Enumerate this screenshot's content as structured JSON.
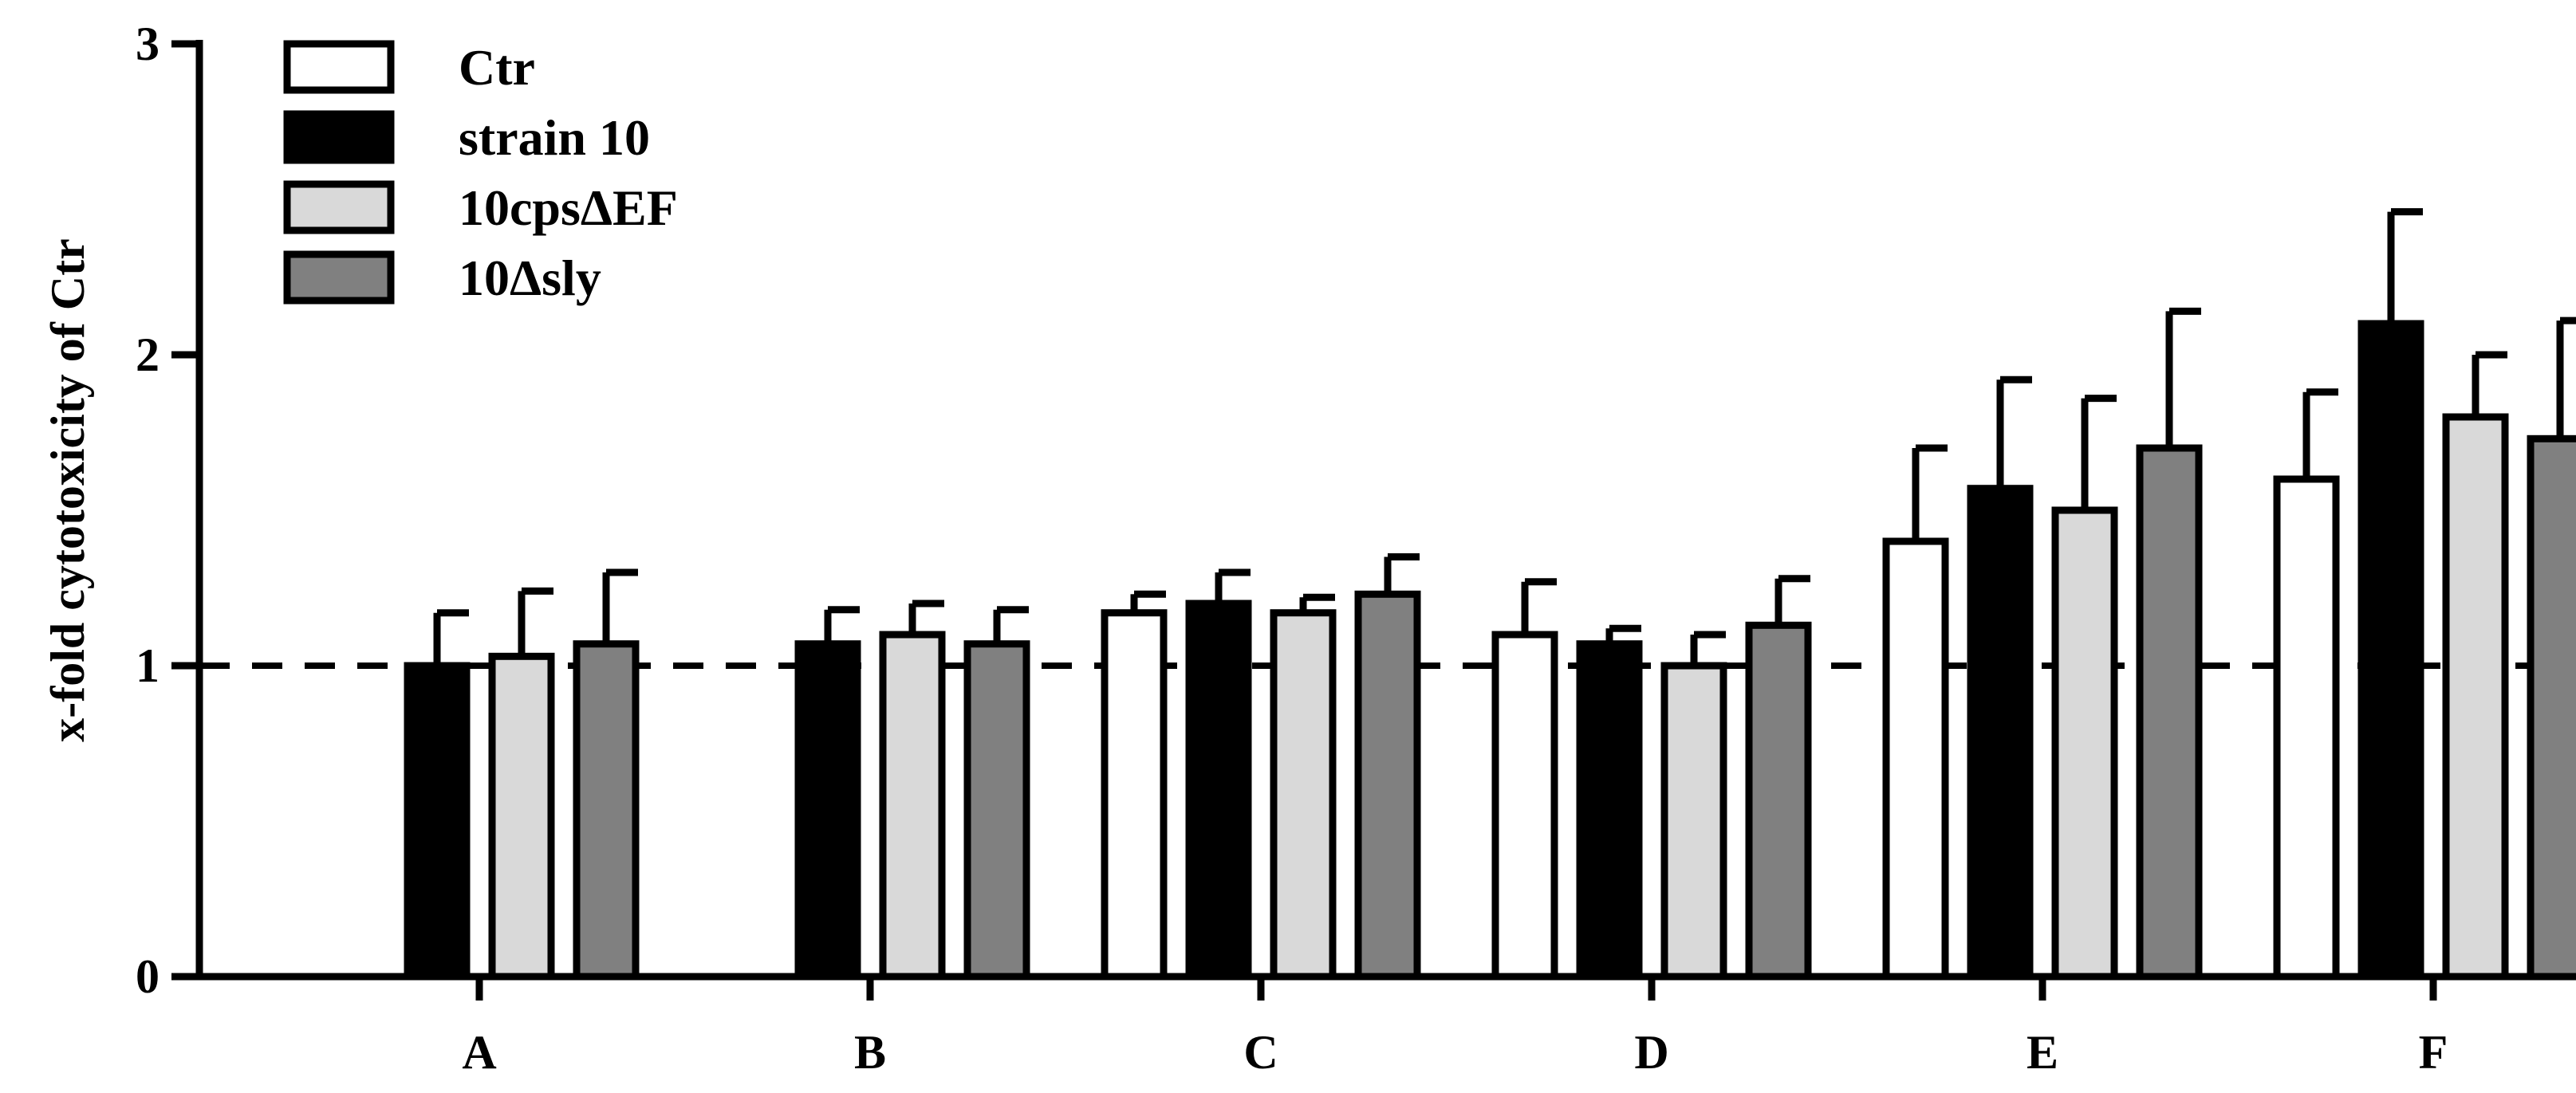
{
  "chart_data": {
    "type": "bar",
    "title": "",
    "xlabel": "",
    "ylabel": "x-fold cytotoxicity of Ctr",
    "ylim": [
      0,
      3
    ],
    "yticks": [
      0,
      1,
      2,
      3
    ],
    "reference_line": 1,
    "legend_position": "top-left",
    "categories": [
      "A",
      "B",
      "C",
      "D",
      "E",
      "F"
    ],
    "series": [
      {
        "name": "Ctr",
        "color": "#ffffff",
        "values": [
          null,
          null,
          1.17,
          1.1,
          1.4,
          1.6
        ],
        "errors": [
          null,
          null,
          0.06,
          0.17,
          0.3,
          0.28
        ]
      },
      {
        "name": "strain 10",
        "color": "#000000",
        "values": [
          1.0,
          1.07,
          1.2,
          1.07,
          1.57,
          2.1
        ],
        "errors": [
          0.17,
          0.11,
          0.1,
          0.05,
          0.35,
          0.36
        ]
      },
      {
        "name": "10cpsΔEF",
        "color": "#d9d9d9",
        "values": [
          1.03,
          1.1,
          1.17,
          1.0,
          1.5,
          1.8
        ],
        "errors": [
          0.21,
          0.1,
          0.05,
          0.1,
          0.36,
          0.2
        ]
      },
      {
        "name": "10Δsly",
        "color": "#808080",
        "values": [
          1.07,
          1.07,
          1.23,
          1.13,
          1.7,
          1.73
        ],
        "errors": [
          0.23,
          0.11,
          0.12,
          0.15,
          0.44,
          0.38
        ]
      }
    ]
  }
}
